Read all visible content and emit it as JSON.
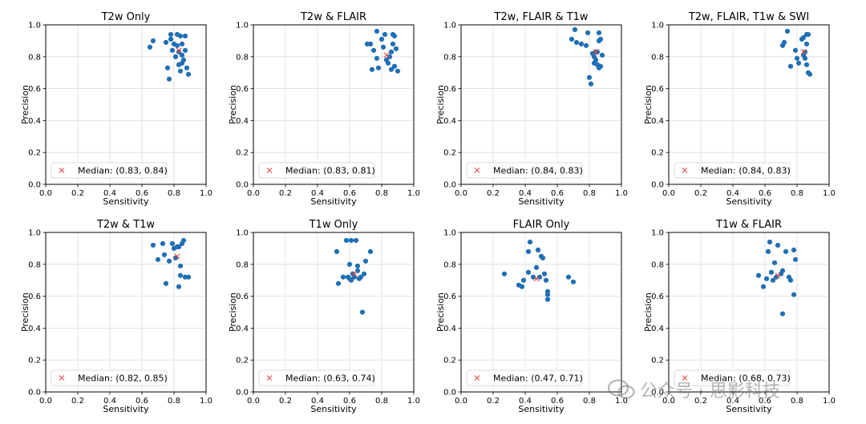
{
  "figure": {
    "watermark": "公众号 · 思影科技"
  },
  "chart_data": [
    {
      "type": "scatter",
      "title": "T2w Only",
      "xlabel": "Sensitivity",
      "ylabel": "Precision",
      "xlim": [
        0,
        1
      ],
      "ylim": [
        0,
        1
      ],
      "xticks": [
        "0.0",
        "0.2",
        "0.4",
        "0.6",
        "0.8",
        "1.0"
      ],
      "yticks": [
        "0.0",
        "0.2",
        "0.4",
        "0.6",
        "0.8",
        "1.0"
      ],
      "grid": true,
      "legend_position": "lower-left",
      "median_label": "Median: (0.83, 0.84)",
      "median": [
        0.83,
        0.84
      ],
      "points": [
        [
          0.65,
          0.86
        ],
        [
          0.67,
          0.9
        ],
        [
          0.75,
          0.89
        ],
        [
          0.76,
          0.73
        ],
        [
          0.77,
          0.66
        ],
        [
          0.78,
          0.91
        ],
        [
          0.78,
          0.94
        ],
        [
          0.79,
          0.84
        ],
        [
          0.8,
          0.88
        ],
        [
          0.81,
          0.8
        ],
        [
          0.82,
          0.94
        ],
        [
          0.82,
          0.87
        ],
        [
          0.83,
          0.83
        ],
        [
          0.83,
          0.75
        ],
        [
          0.84,
          0.71
        ],
        [
          0.84,
          0.93
        ],
        [
          0.85,
          0.88
        ],
        [
          0.85,
          0.81
        ],
        [
          0.85,
          0.76
        ],
        [
          0.86,
          0.78
        ],
        [
          0.87,
          0.93
        ],
        [
          0.87,
          0.84
        ],
        [
          0.88,
          0.73
        ],
        [
          0.89,
          0.69
        ]
      ]
    },
    {
      "type": "scatter",
      "title": "T2w & FLAIR",
      "xlabel": "Sensitivity",
      "ylabel": "Precision",
      "xlim": [
        0,
        1
      ],
      "ylim": [
        0,
        1
      ],
      "xticks": [
        "0.0",
        "0.2",
        "0.4",
        "0.6",
        "0.8",
        "1.0"
      ],
      "yticks": [
        "0.0",
        "0.2",
        "0.4",
        "0.6",
        "0.8",
        "1.0"
      ],
      "grid": true,
      "legend_position": "lower-left",
      "median_label": "Median: (0.83, 0.81)",
      "median": [
        0.83,
        0.81
      ],
      "points": [
        [
          0.71,
          0.88
        ],
        [
          0.73,
          0.88
        ],
        [
          0.74,
          0.72
        ],
        [
          0.75,
          0.84
        ],
        [
          0.77,
          0.96
        ],
        [
          0.77,
          0.79
        ],
        [
          0.78,
          0.73
        ],
        [
          0.8,
          0.91
        ],
        [
          0.81,
          0.86
        ],
        [
          0.82,
          0.94
        ],
        [
          0.83,
          0.78
        ],
        [
          0.84,
          0.76
        ],
        [
          0.85,
          0.8
        ],
        [
          0.86,
          0.72
        ],
        [
          0.86,
          0.83
        ],
        [
          0.87,
          0.88
        ],
        [
          0.87,
          0.94
        ],
        [
          0.88,
          0.93
        ],
        [
          0.88,
          0.74
        ],
        [
          0.89,
          0.85
        ],
        [
          0.9,
          0.71
        ]
      ]
    },
    {
      "type": "scatter",
      "title": "T2w, FLAIR & T1w",
      "xlabel": "Sensitivity",
      "ylabel": "Precision",
      "xlim": [
        0,
        1
      ],
      "ylim": [
        0,
        1
      ],
      "xticks": [
        "0.0",
        "0.2",
        "0.4",
        "0.6",
        "0.8",
        "1.0"
      ],
      "yticks": [
        "0.0",
        "0.2",
        "0.4",
        "0.6",
        "0.8",
        "1.0"
      ],
      "grid": true,
      "legend_position": "lower-left",
      "median_label": "Median: (0.84, 0.83)",
      "median": [
        0.84,
        0.83
      ],
      "points": [
        [
          0.69,
          0.91
        ],
        [
          0.71,
          0.97
        ],
        [
          0.72,
          0.89
        ],
        [
          0.75,
          0.88
        ],
        [
          0.78,
          0.87
        ],
        [
          0.79,
          0.95
        ],
        [
          0.8,
          0.67
        ],
        [
          0.81,
          0.63
        ],
        [
          0.82,
          0.82
        ],
        [
          0.83,
          0.8
        ],
        [
          0.83,
          0.76
        ],
        [
          0.84,
          0.78
        ],
        [
          0.84,
          0.83
        ],
        [
          0.85,
          0.75
        ],
        [
          0.85,
          0.83
        ],
        [
          0.86,
          0.95
        ],
        [
          0.86,
          0.9
        ],
        [
          0.86,
          0.73
        ],
        [
          0.87,
          0.74
        ],
        [
          0.87,
          0.91
        ],
        [
          0.88,
          0.81
        ]
      ]
    },
    {
      "type": "scatter",
      "title": "T2w, FLAIR, T1w & SWI",
      "xlabel": "Sensitivity",
      "ylabel": "Precision",
      "xlim": [
        0,
        1
      ],
      "ylim": [
        0,
        1
      ],
      "xticks": [
        "0.0",
        "0.2",
        "0.4",
        "0.6",
        "0.8",
        "1.0"
      ],
      "yticks": [
        "0.0",
        "0.2",
        "0.4",
        "0.6",
        "0.8",
        "1.0"
      ],
      "grid": true,
      "legend_position": "lower-left",
      "median_label": "Median: (0.84, 0.83)",
      "median": [
        0.84,
        0.83
      ],
      "points": [
        [
          0.71,
          0.87
        ],
        [
          0.72,
          0.89
        ],
        [
          0.74,
          0.96
        ],
        [
          0.76,
          0.74
        ],
        [
          0.79,
          0.84
        ],
        [
          0.8,
          0.79
        ],
        [
          0.81,
          0.76
        ],
        [
          0.83,
          0.91
        ],
        [
          0.84,
          0.92
        ],
        [
          0.84,
          0.81
        ],
        [
          0.85,
          0.83
        ],
        [
          0.85,
          0.79
        ],
        [
          0.86,
          0.75
        ],
        [
          0.86,
          0.88
        ],
        [
          0.86,
          0.94
        ],
        [
          0.87,
          0.94
        ],
        [
          0.87,
          0.7
        ],
        [
          0.88,
          0.69
        ]
      ]
    },
    {
      "type": "scatter",
      "title": "T2w & T1w",
      "xlabel": "Sensitivity",
      "ylabel": "Precision",
      "xlim": [
        0,
        1
      ],
      "ylim": [
        0,
        1
      ],
      "xticks": [
        "0.0",
        "0.2",
        "0.4",
        "0.6",
        "0.8",
        "1.0"
      ],
      "yticks": [
        "0.0",
        "0.2",
        "0.4",
        "0.6",
        "0.8",
        "1.0"
      ],
      "grid": true,
      "legend_position": "lower-left",
      "median_label": "Median: (0.82, 0.85)",
      "median": [
        0.82,
        0.85
      ],
      "points": [
        [
          0.67,
          0.92
        ],
        [
          0.7,
          0.83
        ],
        [
          0.73,
          0.93
        ],
        [
          0.74,
          0.86
        ],
        [
          0.75,
          0.68
        ],
        [
          0.77,
          0.82
        ],
        [
          0.79,
          0.93
        ],
        [
          0.8,
          0.9
        ],
        [
          0.81,
          0.84
        ],
        [
          0.82,
          0.91
        ],
        [
          0.83,
          0.91
        ],
        [
          0.83,
          0.66
        ],
        [
          0.84,
          0.79
        ],
        [
          0.84,
          0.73
        ],
        [
          0.85,
          0.93
        ],
        [
          0.86,
          0.95
        ],
        [
          0.87,
          0.72
        ],
        [
          0.89,
          0.72
        ]
      ]
    },
    {
      "type": "scatter",
      "title": "T1w Only",
      "xlabel": "Sensitivity",
      "ylabel": "Precision",
      "xlim": [
        0,
        1
      ],
      "ylim": [
        0,
        1
      ],
      "xticks": [
        "0.0",
        "0.2",
        "0.4",
        "0.6",
        "0.8",
        "1.0"
      ],
      "yticks": [
        "0.0",
        "0.2",
        "0.4",
        "0.6",
        "0.8",
        "1.0"
      ],
      "grid": true,
      "legend_position": "lower-left",
      "median_label": "Median: (0.63, 0.74)",
      "median": [
        0.63,
        0.74
      ],
      "points": [
        [
          0.52,
          0.88
        ],
        [
          0.53,
          0.68
        ],
        [
          0.56,
          0.72
        ],
        [
          0.58,
          0.95
        ],
        [
          0.59,
          0.72
        ],
        [
          0.6,
          0.8
        ],
        [
          0.6,
          0.71
        ],
        [
          0.61,
          0.95
        ],
        [
          0.61,
          0.7
        ],
        [
          0.62,
          0.74
        ],
        [
          0.63,
          0.72
        ],
        [
          0.64,
          0.95
        ],
        [
          0.65,
          0.79
        ],
        [
          0.65,
          0.76
        ],
        [
          0.66,
          0.71
        ],
        [
          0.67,
          0.72
        ],
        [
          0.68,
          0.5
        ],
        [
          0.69,
          0.74
        ],
        [
          0.7,
          0.82
        ],
        [
          0.73,
          0.88
        ]
      ]
    },
    {
      "type": "scatter",
      "title": "FLAIR Only",
      "xlabel": "Sensitivity",
      "ylabel": "Precision",
      "xlim": [
        0,
        1
      ],
      "ylim": [
        0,
        1
      ],
      "xticks": [
        "0.0",
        "0.2",
        "0.4",
        "0.6",
        "0.8",
        "1.0"
      ],
      "yticks": [
        "0.0",
        "0.2",
        "0.4",
        "0.6",
        "0.8",
        "1.0"
      ],
      "grid": true,
      "legend_position": "lower-left",
      "median_label": "Median: (0.47, 0.71)",
      "median": [
        0.47,
        0.71
      ],
      "points": [
        [
          0.27,
          0.74
        ],
        [
          0.36,
          0.67
        ],
        [
          0.38,
          0.66
        ],
        [
          0.39,
          0.7
        ],
        [
          0.42,
          0.88
        ],
        [
          0.42,
          0.75
        ],
        [
          0.43,
          0.94
        ],
        [
          0.45,
          0.72
        ],
        [
          0.47,
          0.78
        ],
        [
          0.48,
          0.89
        ],
        [
          0.49,
          0.72
        ],
        [
          0.5,
          0.85
        ],
        [
          0.51,
          0.84
        ],
        [
          0.52,
          0.74
        ],
        [
          0.53,
          0.7
        ],
        [
          0.54,
          0.63
        ],
        [
          0.54,
          0.61
        ],
        [
          0.54,
          0.58
        ],
        [
          0.67,
          0.72
        ],
        [
          0.7,
          0.69
        ]
      ]
    },
    {
      "type": "scatter",
      "title": "T1w & FLAIR",
      "xlabel": "Sensitivity",
      "ylabel": "Precision",
      "xlim": [
        0,
        1
      ],
      "ylim": [
        0,
        1
      ],
      "xticks": [
        "0.0",
        "0.2",
        "0.4",
        "0.6",
        "0.8",
        "1.0"
      ],
      "yticks": [
        "0.0",
        "0.2",
        "0.4",
        "0.6",
        "0.8",
        "1.0"
      ],
      "grid": true,
      "legend_position": "lower-left",
      "median_label": "Median: (0.68, 0.73)",
      "median": [
        0.68,
        0.73
      ],
      "points": [
        [
          0.56,
          0.73
        ],
        [
          0.59,
          0.66
        ],
        [
          0.61,
          0.71
        ],
        [
          0.62,
          0.88
        ],
        [
          0.63,
          0.94
        ],
        [
          0.64,
          0.75
        ],
        [
          0.65,
          0.7
        ],
        [
          0.66,
          0.81
        ],
        [
          0.67,
          0.72
        ],
        [
          0.68,
          0.92
        ],
        [
          0.7,
          0.74
        ],
        [
          0.71,
          0.76
        ],
        [
          0.71,
          0.49
        ],
        [
          0.73,
          0.88
        ],
        [
          0.75,
          0.72
        ],
        [
          0.76,
          0.7
        ],
        [
          0.78,
          0.89
        ],
        [
          0.78,
          0.61
        ],
        [
          0.79,
          0.83
        ]
      ]
    }
  ]
}
